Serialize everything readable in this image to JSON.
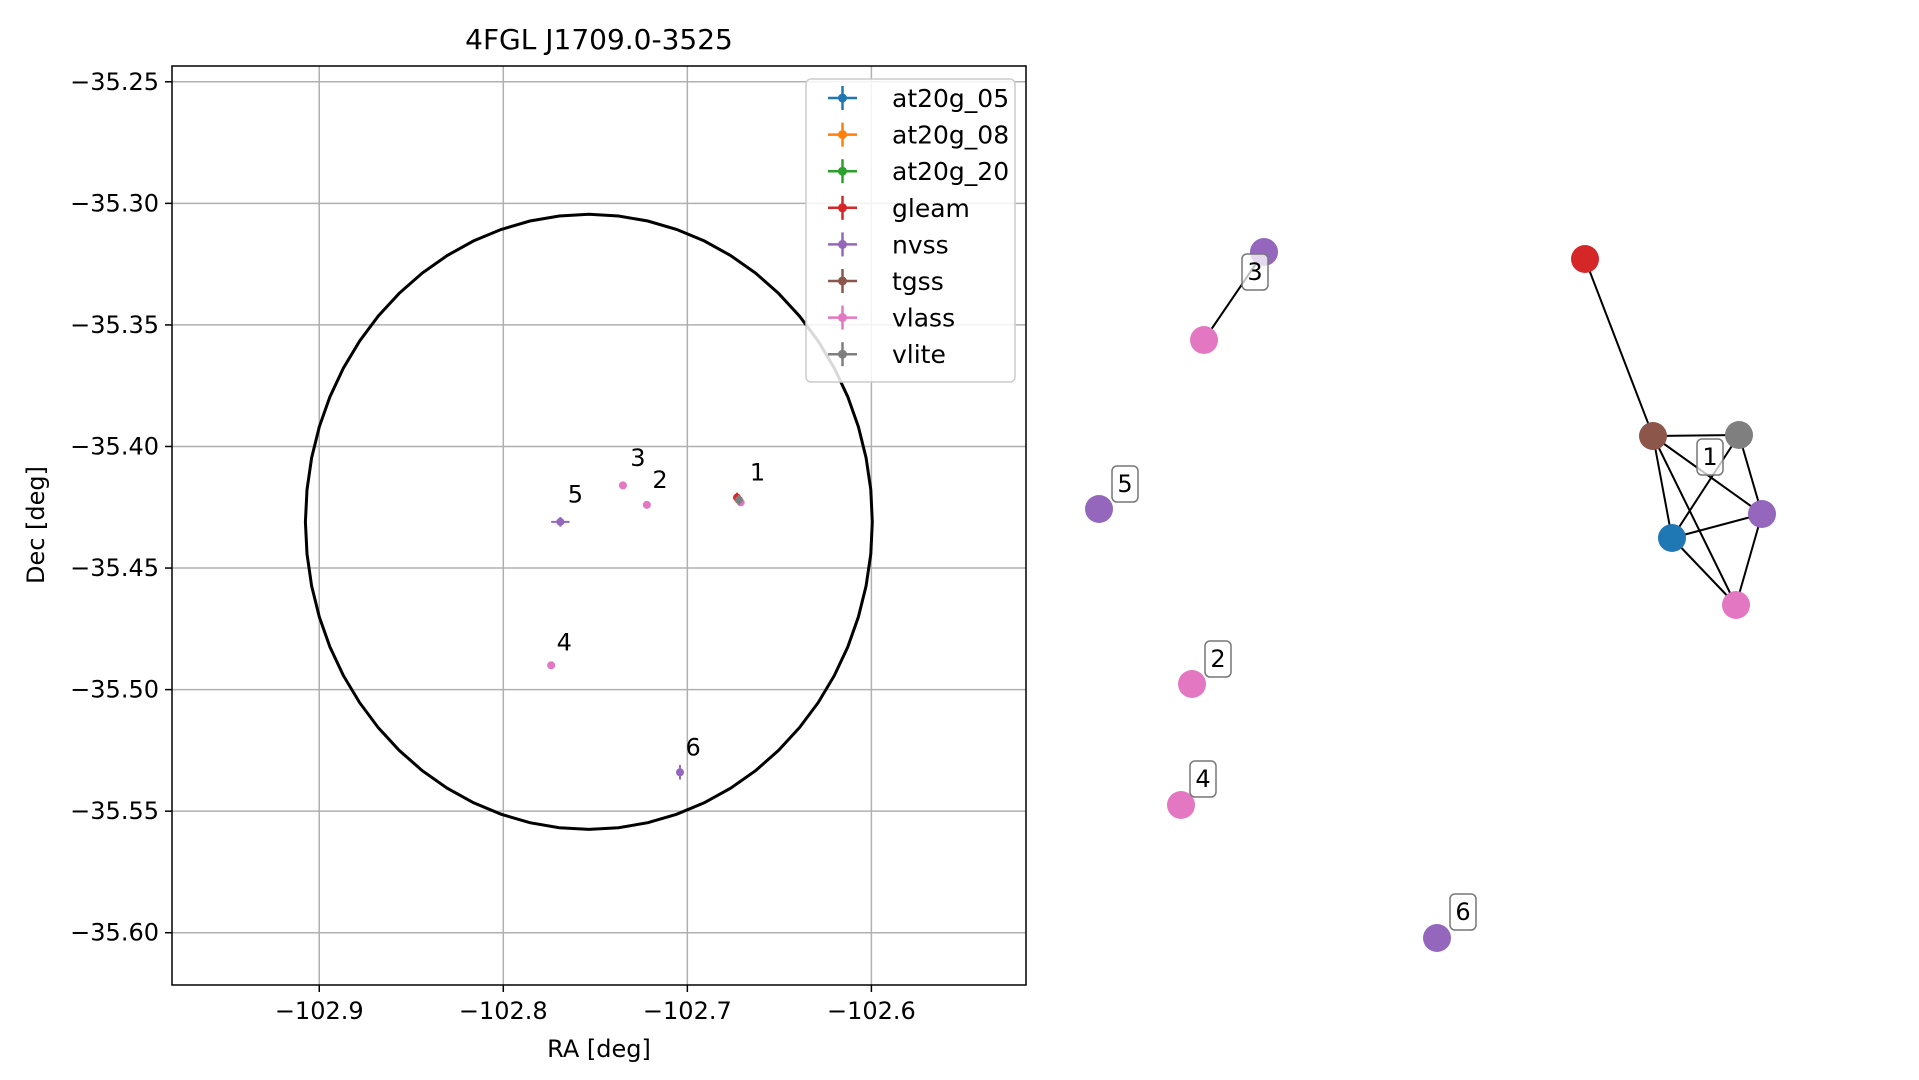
{
  "chart_data": [
    {
      "type": "scatter",
      "title": "4FGL J1709.0-3525",
      "xlabel": "RA [deg]",
      "ylabel": "Dec [deg]",
      "xlim": [
        -102.98,
        -102.516
      ],
      "ylim": [
        -35.6215,
        -35.2435
      ],
      "xticks": [
        -102.9,
        -102.8,
        -102.7,
        -102.6
      ],
      "xtick_labels": [
        "−102.9",
        "−102.8",
        "−102.7",
        "−102.6"
      ],
      "yticks": [
        -35.25,
        -35.3,
        -35.35,
        -35.4,
        -35.45,
        -35.5,
        -35.55,
        -35.6
      ],
      "ytick_labels": [
        "−35.25",
        "−35.30",
        "−35.35",
        "−35.40",
        "−35.45",
        "−35.50",
        "−35.55",
        "−35.60"
      ],
      "grid": true,
      "legend_position": "top-right",
      "error_circle": {
        "center": [
          -102.7535,
          -35.431
        ],
        "ra_radius": 0.154,
        "dec_radius": 0.1265,
        "color": "#000000"
      },
      "series": [
        {
          "name": "at20g_05",
          "color": "#1f77b4",
          "points": []
        },
        {
          "name": "at20g_08",
          "color": "#ff7f0e",
          "points": []
        },
        {
          "name": "at20g_20",
          "color": "#2ca02c",
          "points": []
        },
        {
          "name": "gleam",
          "color": "#d62728",
          "points": [
            {
              "x": -102.673,
              "y": -35.421,
              "xerr": 0.002,
              "yerr": 0.002
            }
          ]
        },
        {
          "name": "nvss",
          "color": "#9467bd",
          "points": [
            {
              "x": -102.672,
              "y": -35.422,
              "xerr": 0.002,
              "yerr": 0.002
            },
            {
              "x": -102.769,
              "y": -35.431,
              "xerr": 0.005,
              "yerr": 0.002
            },
            {
              "x": -102.704,
              "y": -35.534,
              "xerr": 0.002,
              "yerr": 0.003
            }
          ]
        },
        {
          "name": "tgss",
          "color": "#8c564b",
          "points": [
            {
              "x": -102.672,
              "y": -35.422,
              "xerr": 0.001,
              "yerr": 0.001
            }
          ]
        },
        {
          "name": "vlass",
          "color": "#e377c2",
          "points": [
            {
              "x": -102.735,
              "y": -35.416,
              "xerr": 0.001,
              "yerr": 0.001
            },
            {
              "x": -102.722,
              "y": -35.424,
              "xerr": 0.001,
              "yerr": 0.001
            },
            {
              "x": -102.774,
              "y": -35.49,
              "xerr": 0.001,
              "yerr": 0.001
            },
            {
              "x": -102.671,
              "y": -35.423,
              "xerr": 0.001,
              "yerr": 0.001
            }
          ]
        },
        {
          "name": "vlite",
          "color": "#7f7f7f",
          "points": [
            {
              "x": -102.672,
              "y": -35.422,
              "xerr": 0.002,
              "yerr": 0.002
            }
          ]
        }
      ],
      "annotations": [
        {
          "text": "1",
          "x": -102.666,
          "y": -35.414
        },
        {
          "text": "2",
          "x": -102.719,
          "y": -35.417
        },
        {
          "text": "3",
          "x": -102.731,
          "y": -35.408
        },
        {
          "text": "4",
          "x": -102.771,
          "y": -35.484
        },
        {
          "text": "5",
          "x": -102.765,
          "y": -35.423
        },
        {
          "text": "6",
          "x": -102.701,
          "y": -35.527
        }
      ]
    },
    {
      "type": "network",
      "nodes": [
        {
          "id": "c1",
          "color": "#9467bd"
        },
        {
          "id": "c2",
          "color": "#e377c2"
        },
        {
          "id": "c3",
          "color": "#9467bd"
        },
        {
          "id": "c4",
          "color": "#e377c2"
        },
        {
          "id": "c5",
          "color": "#e377c2"
        },
        {
          "id": "c6",
          "color": "#9467bd"
        },
        {
          "id": "c7",
          "color": "#d62728"
        },
        {
          "id": "c8",
          "color": "#8c564b"
        },
        {
          "id": "c9",
          "color": "#7f7f7f"
        },
        {
          "id": "c10",
          "color": "#1f77b4"
        },
        {
          "id": "c11",
          "color": "#9467bd"
        },
        {
          "id": "c12",
          "color": "#e377c2"
        }
      ],
      "edges": [
        [
          "c1",
          "c2"
        ],
        [
          "c7",
          "c8"
        ],
        [
          "c8",
          "c9"
        ],
        [
          "c8",
          "c10"
        ],
        [
          "c8",
          "c11"
        ],
        [
          "c8",
          "c12"
        ],
        [
          "c9",
          "c10"
        ],
        [
          "c9",
          "c11"
        ],
        [
          "c10",
          "c11"
        ],
        [
          "c10",
          "c12"
        ],
        [
          "c11",
          "c12"
        ]
      ],
      "labels": [
        {
          "text": "1",
          "node": "c11"
        },
        {
          "text": "2",
          "node": "c4"
        },
        {
          "text": "3",
          "node": "c1"
        },
        {
          "text": "4",
          "node": "c5"
        },
        {
          "text": "5",
          "node": "c3"
        },
        {
          "text": "6",
          "node": "c6"
        }
      ]
    }
  ]
}
